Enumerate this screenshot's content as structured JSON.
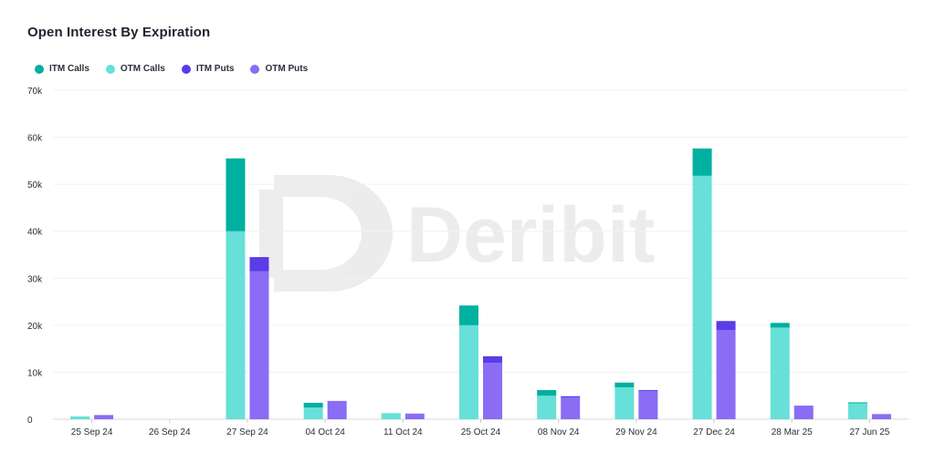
{
  "chart_data": {
    "type": "bar",
    "title": "Open Interest By Expiration",
    "categories": [
      "25 Sep 24",
      "26 Sep 24",
      "27 Sep 24",
      "04 Oct 24",
      "11 Oct 24",
      "25 Oct 24",
      "08 Nov 24",
      "29 Nov 24",
      "27 Dec 24",
      "28 Mar 25",
      "27 Jun 25"
    ],
    "series": [
      {
        "name": "ITM Calls",
        "color": "#00b0a0",
        "stack": "calls",
        "values": [
          0,
          0,
          15500,
          1000,
          0,
          4200,
          1200,
          1000,
          5800,
          1000,
          200
        ]
      },
      {
        "name": "OTM Calls",
        "color": "#66e0d8",
        "stack": "calls",
        "values": [
          600,
          0,
          40000,
          2500,
          1300,
          20000,
          5000,
          6800,
          51800,
          19500,
          3400
        ]
      },
      {
        "name": "ITM Puts",
        "color": "#5b3ce8",
        "stack": "puts",
        "values": [
          0,
          0,
          3000,
          0,
          0,
          1400,
          300,
          200,
          1900,
          0,
          0
        ]
      },
      {
        "name": "OTM Puts",
        "color": "#8b6cf5",
        "stack": "puts",
        "values": [
          900,
          0,
          31500,
          3900,
          1200,
          12000,
          4600,
          6000,
          19000,
          2900,
          1100
        ]
      }
    ],
    "ylim": [
      0,
      70000
    ],
    "yticks": [
      "0",
      "10k",
      "20k",
      "30k",
      "40k",
      "50k",
      "60k",
      "70k"
    ],
    "grid": true,
    "legend_position": "top-left",
    "watermark": "Deribit"
  }
}
